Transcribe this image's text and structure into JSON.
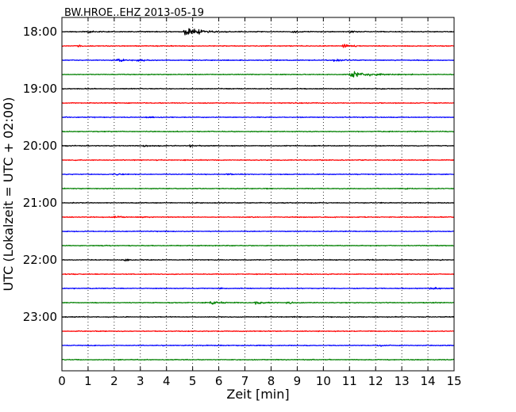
{
  "chart_data": {
    "type": "line",
    "title": "BW.HROE..EHZ 2013-05-19",
    "xlabel": "Zeit  [min]",
    "ylabel": "UTC (Lokalzeit = UTC + 02:00)",
    "xlim": [
      0,
      15
    ],
    "x_ticks": [
      "0",
      "1",
      "2",
      "3",
      "4",
      "5",
      "6",
      "7",
      "8",
      "9",
      "10",
      "11",
      "12",
      "13",
      "14",
      "15"
    ],
    "y_tick_labels": [
      "18:00",
      "19:00",
      "20:00",
      "21:00",
      "22:00",
      "23:00"
    ],
    "vertical_grid": "dotted",
    "trace_interval_minutes": 15,
    "trace_colors": [
      "#000000",
      "#ff0000",
      "#0000ff",
      "#008000"
    ],
    "traces": [
      {
        "start": "18:00",
        "color": "#000000",
        "events": [
          [
            1.0,
            0.25
          ],
          [
            4.68,
            1.7
          ],
          [
            8.8,
            0.35
          ],
          [
            11.0,
            0.3
          ]
        ]
      },
      {
        "start": "18:15",
        "color": "#ff0000",
        "events": [
          [
            0.6,
            0.3
          ],
          [
            10.75,
            0.8
          ]
        ]
      },
      {
        "start": "18:30",
        "color": "#0000ff",
        "events": [
          [
            2.1,
            0.7
          ],
          [
            2.9,
            0.4
          ],
          [
            10.4,
            0.6
          ]
        ]
      },
      {
        "start": "18:45",
        "color": "#008000",
        "events": [
          [
            11.0,
            1.3
          ]
        ]
      },
      {
        "start": "19:00",
        "color": "#000000",
        "events": []
      },
      {
        "start": "19:15",
        "color": "#ff0000",
        "events": [
          [
            8.9,
            0.3
          ]
        ]
      },
      {
        "start": "19:30",
        "color": "#0000ff",
        "events": [
          [
            3.2,
            0.35
          ]
        ]
      },
      {
        "start": "19:45",
        "color": "#008000",
        "events": []
      },
      {
        "start": "20:00",
        "color": "#000000",
        "events": [
          [
            3.1,
            0.35
          ],
          [
            4.9,
            0.4
          ]
        ]
      },
      {
        "start": "20:15",
        "color": "#ff0000",
        "events": []
      },
      {
        "start": "20:30",
        "color": "#0000ff",
        "events": [
          [
            2.0,
            0.35
          ],
          [
            6.3,
            0.25
          ]
        ]
      },
      {
        "start": "20:45",
        "color": "#008000",
        "events": [
          [
            13.1,
            0.3
          ]
        ]
      },
      {
        "start": "21:00",
        "color": "#000000",
        "events": []
      },
      {
        "start": "21:15",
        "color": "#ff0000",
        "events": [
          [
            2.0,
            0.45
          ]
        ]
      },
      {
        "start": "21:30",
        "color": "#0000ff",
        "events": []
      },
      {
        "start": "21:45",
        "color": "#008000",
        "events": []
      },
      {
        "start": "22:00",
        "color": "#000000",
        "events": [
          [
            2.4,
            0.3
          ]
        ]
      },
      {
        "start": "22:15",
        "color": "#ff0000",
        "events": []
      },
      {
        "start": "22:30",
        "color": "#0000ff",
        "events": [
          [
            6.0,
            0.25
          ],
          [
            14.1,
            0.4
          ]
        ]
      },
      {
        "start": "22:45",
        "color": "#008000",
        "events": [
          [
            5.7,
            0.9
          ],
          [
            7.4,
            0.7
          ],
          [
            8.6,
            0.5
          ]
        ]
      },
      {
        "start": "23:00",
        "color": "#000000",
        "events": []
      },
      {
        "start": "23:15",
        "color": "#ff0000",
        "events": []
      },
      {
        "start": "23:30",
        "color": "#0000ff",
        "events": [
          [
            12.1,
            0.2
          ]
        ]
      },
      {
        "start": "23:45",
        "color": "#008000",
        "events": []
      }
    ]
  }
}
